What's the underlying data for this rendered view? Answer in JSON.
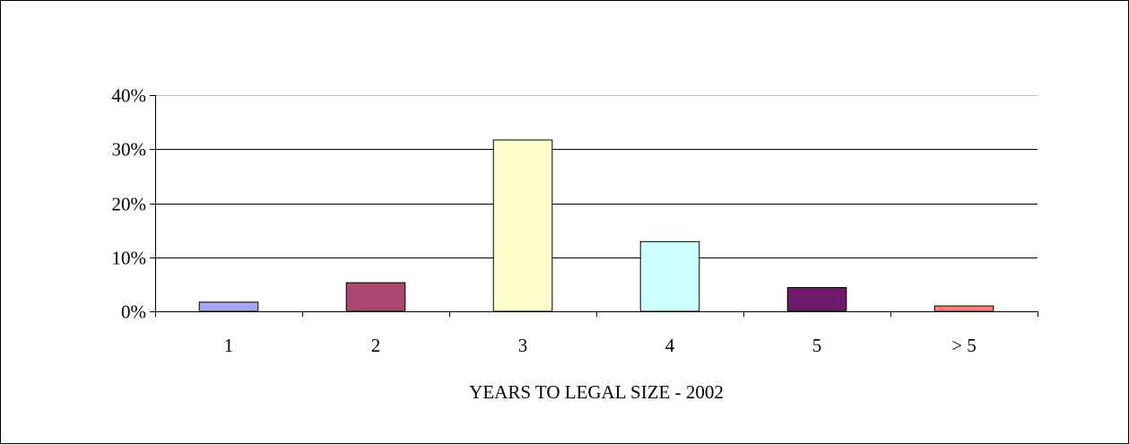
{
  "chart_data": {
    "type": "bar",
    "title": "",
    "xlabel": "YEARS TO LEGAL SIZE - 2002",
    "ylabel": "",
    "categories": [
      "1",
      "2",
      "3",
      "4",
      "5",
      "> 5"
    ],
    "values": [
      1.7,
      5.3,
      31.7,
      12.9,
      4.4,
      1.0
    ],
    "ylim": [
      0,
      40
    ],
    "yticks": [
      0,
      10,
      20,
      30,
      40
    ],
    "ytick_format": "%",
    "grid": true,
    "legend": "none",
    "bar_colors": [
      "#a6a6f2",
      "#a94771",
      "#ffffcc",
      "#ccffff",
      "#6e1b6e",
      "#ff8080"
    ]
  }
}
